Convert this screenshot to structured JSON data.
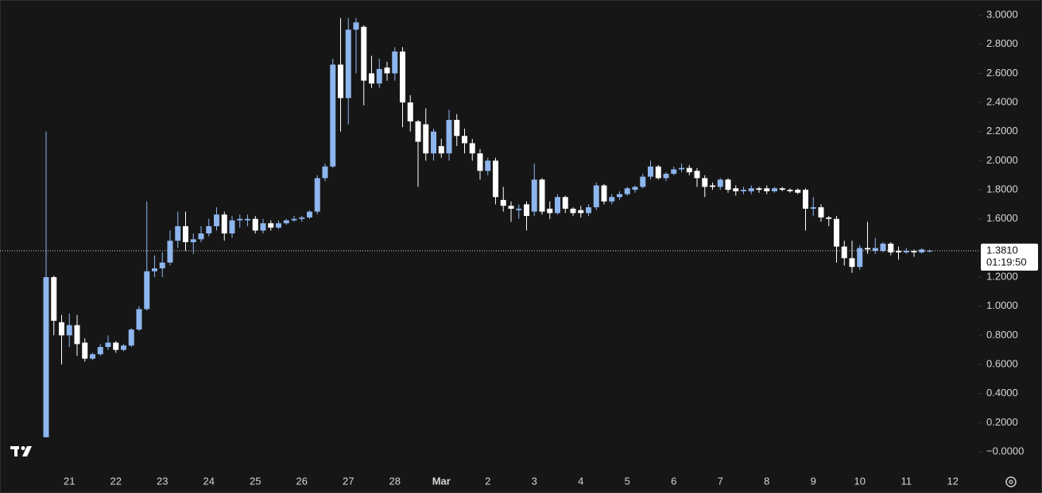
{
  "chart_data": {
    "type": "candlestick",
    "categories": [
      null,
      null,
      null,
      "21",
      null,
      null,
      null,
      null,
      null,
      "22",
      null,
      null,
      null,
      null,
      null,
      "23",
      null,
      null,
      null,
      null,
      null,
      "24",
      null,
      null,
      null,
      null,
      null,
      "25",
      null,
      null,
      null,
      null,
      null,
      "26",
      null,
      null,
      null,
      null,
      null,
      "27",
      null,
      null,
      null,
      null,
      null,
      "28",
      null,
      null,
      null,
      null,
      null,
      "Mar",
      null,
      null,
      null,
      null,
      null,
      "2",
      null,
      null,
      null,
      null,
      null,
      "3",
      null,
      null,
      null,
      null,
      null,
      "4",
      null,
      null,
      null,
      null,
      null,
      "5",
      null,
      null,
      null,
      null,
      null,
      "6",
      null,
      null,
      null,
      null,
      null,
      "7",
      null,
      null,
      null,
      null,
      null,
      "8",
      null,
      null,
      null,
      null,
      null,
      "9",
      null,
      null,
      null,
      null,
      null,
      "10",
      null,
      null,
      null,
      null,
      null,
      "11",
      null,
      null,
      null,
      null,
      null,
      "12"
    ],
    "open": [
      0.1,
      1.2,
      0.89,
      0.8,
      0.87,
      0.75,
      0.64,
      0.67,
      0.72,
      0.75,
      0.7,
      0.73,
      0.84,
      0.98,
      1.24,
      1.26,
      1.3,
      1.45,
      1.55,
      1.44,
      1.46,
      1.5,
      1.55,
      1.63,
      1.5,
      1.59,
      1.59,
      1.6,
      1.52,
      1.57,
      1.54,
      1.57,
      1.59,
      1.6,
      1.61,
      1.65,
      1.88,
      1.96,
      2.66,
      2.43,
      2.9,
      2.92,
      2.6,
      2.53,
      2.64,
      2.6,
      2.75,
      2.4,
      2.27,
      2.25,
      2.05,
      2.1,
      2.05,
      2.28,
      2.17,
      2.12,
      2.05,
      1.93,
      2.0,
      1.73,
      1.69,
      1.66,
      1.7,
      1.65,
      1.87,
      1.67,
      1.64,
      1.75,
      1.67,
      1.66,
      1.64,
      1.68,
      1.83,
      1.72,
      1.75,
      1.77,
      1.8,
      1.82,
      1.89,
      1.96,
      1.88,
      1.91,
      1.94,
      1.95,
      1.93,
      1.88,
      1.83,
      1.82,
      1.87,
      1.81,
      1.79,
      1.79,
      1.81,
      1.81,
      1.79,
      1.81,
      1.8,
      1.8,
      1.8,
      1.67,
      1.68,
      1.61,
      1.6,
      1.41,
      1.33,
      1.27,
      1.4,
      1.38,
      1.38,
      1.43,
      1.38,
      1.37,
      1.38,
      1.37,
      1.38,
      null,
      null,
      null
    ],
    "high": [
      2.2,
      1.21,
      0.94,
      0.95,
      0.94,
      0.78,
      0.68,
      0.74,
      0.8,
      0.76,
      0.74,
      0.85,
      1.0,
      1.72,
      1.35,
      1.37,
      1.52,
      1.65,
      1.65,
      1.5,
      1.55,
      1.6,
      1.68,
      1.65,
      1.62,
      1.63,
      1.63,
      1.62,
      1.6,
      1.59,
      1.59,
      1.6,
      1.62,
      1.62,
      1.66,
      1.9,
      1.98,
      2.7,
      2.98,
      2.98,
      2.98,
      2.93,
      2.72,
      2.7,
      2.68,
      2.78,
      2.78,
      2.45,
      2.28,
      2.36,
      2.22,
      2.15,
      2.35,
      2.32,
      2.22,
      2.15,
      2.08,
      2.02,
      2.02,
      1.82,
      1.72,
      1.7,
      1.72,
      1.98,
      1.88,
      1.72,
      1.77,
      1.76,
      1.68,
      1.69,
      1.7,
      1.85,
      1.84,
      1.77,
      1.79,
      1.82,
      1.83,
      1.91,
      2.0,
      1.97,
      1.92,
      1.96,
      1.98,
      1.97,
      1.95,
      1.9,
      1.85,
      1.88,
      1.88,
      1.83,
      1.82,
      1.83,
      1.82,
      1.83,
      1.82,
      1.82,
      1.81,
      1.81,
      1.81,
      1.75,
      1.7,
      1.62,
      1.62,
      1.45,
      1.45,
      1.42,
      1.58,
      1.47,
      1.44,
      1.44,
      1.41,
      1.4,
      1.39,
      1.4,
      1.39,
      null,
      null,
      null
    ],
    "low": [
      0.1,
      0.8,
      0.6,
      0.72,
      0.66,
      0.62,
      0.63,
      0.66,
      0.7,
      0.68,
      0.69,
      0.72,
      0.83,
      0.97,
      1.2,
      1.2,
      1.28,
      1.4,
      1.38,
      1.36,
      1.44,
      1.48,
      1.52,
      1.45,
      1.47,
      1.54,
      1.55,
      1.5,
      1.5,
      1.52,
      1.53,
      1.56,
      1.58,
      1.58,
      1.6,
      1.63,
      1.86,
      1.95,
      2.2,
      2.25,
      2.6,
      2.38,
      2.5,
      2.5,
      2.55,
      2.55,
      2.23,
      2.2,
      1.82,
      2.0,
      2.0,
      2.02,
      2.0,
      2.1,
      2.05,
      2.0,
      1.87,
      1.9,
      1.7,
      1.65,
      1.58,
      1.6,
      1.52,
      1.62,
      1.63,
      1.6,
      1.63,
      1.64,
      1.62,
      1.61,
      1.62,
      1.66,
      1.7,
      1.7,
      1.73,
      1.76,
      1.78,
      1.81,
      1.87,
      1.87,
      1.86,
      1.9,
      1.92,
      1.9,
      1.82,
      1.75,
      1.8,
      1.8,
      1.78,
      1.76,
      1.77,
      1.77,
      1.78,
      1.77,
      1.78,
      1.79,
      1.78,
      1.77,
      1.52,
      1.62,
      1.58,
      1.55,
      1.3,
      1.28,
      1.23,
      1.25,
      1.36,
      1.36,
      1.37,
      1.35,
      1.32,
      1.36,
      1.34,
      1.36,
      1.37,
      null,
      null,
      null
    ],
    "close": [
      1.2,
      0.9,
      0.8,
      0.87,
      0.74,
      0.64,
      0.67,
      0.72,
      0.75,
      0.7,
      0.73,
      0.84,
      0.98,
      1.24,
      1.26,
      1.3,
      1.45,
      1.55,
      1.44,
      1.46,
      1.5,
      1.55,
      1.63,
      1.5,
      1.59,
      1.6,
      1.6,
      1.52,
      1.57,
      1.54,
      1.57,
      1.59,
      1.6,
      1.61,
      1.65,
      1.88,
      1.96,
      2.66,
      2.43,
      2.9,
      2.95,
      2.55,
      2.53,
      2.63,
      2.6,
      2.75,
      2.4,
      2.27,
      2.13,
      2.05,
      2.2,
      2.05,
      2.28,
      2.17,
      2.12,
      2.05,
      1.93,
      2.0,
      1.75,
      1.69,
      1.67,
      1.67,
      1.62,
      1.87,
      1.65,
      1.64,
      1.75,
      1.67,
      1.64,
      1.64,
      1.68,
      1.83,
      1.72,
      1.75,
      1.77,
      1.81,
      1.82,
      1.89,
      1.96,
      1.88,
      1.91,
      1.94,
      1.95,
      1.92,
      1.88,
      1.82,
      1.82,
      1.87,
      1.8,
      1.79,
      1.8,
      1.81,
      1.8,
      1.79,
      1.81,
      1.8,
      1.79,
      1.78,
      1.67,
      1.68,
      1.61,
      1.6,
      1.41,
      1.33,
      1.27,
      1.4,
      1.39,
      1.4,
      1.43,
      1.37,
      1.37,
      1.38,
      1.37,
      1.39,
      1.381,
      null,
      null,
      null
    ],
    "up_color": "#8db5ee",
    "down_color": "#ffffff",
    "ylim": [
      -0.136,
      3.104
    ],
    "yticks": [
      {
        "value": 3,
        "label": "3.0000"
      },
      {
        "value": 2.8,
        "label": "2.8000"
      },
      {
        "value": 2.6,
        "label": "2.6000"
      },
      {
        "value": 2.4,
        "label": "2.4000"
      },
      {
        "value": 2.2,
        "label": "2.2000"
      },
      {
        "value": 2,
        "label": "2.0000"
      },
      {
        "value": 1.8,
        "label": "1.8000"
      },
      {
        "value": 1.6,
        "label": "1.6000"
      },
      {
        "value": 1.2,
        "label": "1.2000"
      },
      {
        "value": 1,
        "label": "1.0000"
      },
      {
        "value": 0.8,
        "label": "0.8000"
      },
      {
        "value": 0.6,
        "label": "0.6000"
      },
      {
        "value": 0.4,
        "label": "0.4000"
      },
      {
        "value": 0.2,
        "label": "0.2000"
      },
      {
        "value": 0,
        "label": "−0.0000"
      }
    ],
    "last_price": {
      "value": 1.381,
      "label": "1.3810"
    },
    "countdown": "01:19:50"
  }
}
